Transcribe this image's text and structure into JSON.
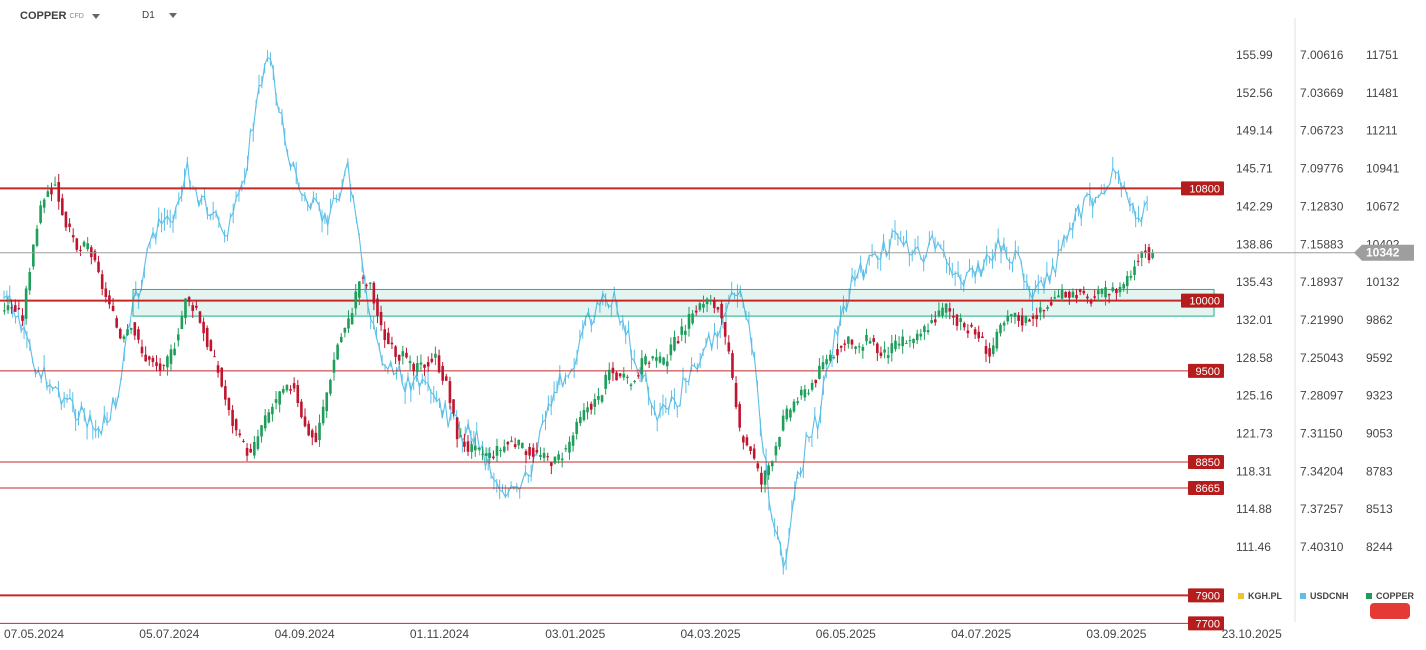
{
  "header": {
    "symbol": "COPPER",
    "symbol_sub": "CFD",
    "timeframe": "D1"
  },
  "legend": [
    {
      "name": "KGH.PL",
      "color": "#f1c232"
    },
    {
      "name": "USDCNH",
      "color": "#5bbfe8"
    },
    {
      "name": "COPPER",
      "color": "#1e9e5a"
    }
  ],
  "colors": {
    "up": "#1e9e5a",
    "down": "#c0152f",
    "usdcnh": "#5bbfe8",
    "level": "#c62828",
    "zone": "#1fae8a"
  },
  "chart_data": {
    "type": "line",
    "x_ticks": [
      "07.05.2024",
      "05.07.2024",
      "04.09.2024",
      "01.11.2024",
      "03.01.2025",
      "04.03.2025",
      "06.05.2025",
      "04.07.2025",
      "03.09.2025",
      "23.10.2025"
    ],
    "axes": {
      "kgh": [
        "155.99",
        "152.56",
        "149.14",
        "145.71",
        "142.29",
        "138.86",
        "135.43",
        "132.01",
        "128.58",
        "125.16",
        "121.73",
        "118.31",
        "114.88",
        "111.46"
      ],
      "usdcnh": [
        "7.00616",
        "7.03669",
        "7.06723",
        "7.09776",
        "7.12830",
        "7.15883",
        "7.18937",
        "7.21990",
        "7.25043",
        "7.28097",
        "7.31150",
        "7.34204",
        "7.37257",
        "7.40310"
      ],
      "copper": [
        "11751",
        "11481",
        "11211",
        "10941",
        "10672",
        "10402",
        "10132",
        "9862",
        "9592",
        "9323",
        "9053",
        "8783",
        "8513",
        "8244"
      ]
    },
    "copper_range": [
      8244,
      11751
    ],
    "current_price": "10342",
    "levels": [
      {
        "label": "10800",
        "value": 10800,
        "thick": true
      },
      {
        "label": "10000",
        "value": 10000,
        "thick": true
      },
      {
        "label": "9500",
        "value": 9500,
        "thick": false
      },
      {
        "label": "8850",
        "value": 8850,
        "thick": false
      },
      {
        "label": "8665",
        "value": 8665,
        "thick": false
      },
      {
        "label": "7900",
        "value": 7900,
        "thick": true
      },
      {
        "label": "7700",
        "value": 7700,
        "thick": false
      }
    ],
    "zone": {
      "from": 9890,
      "to": 10080
    },
    "series": [
      {
        "name": "COPPER",
        "values": [
          9960,
          9880,
          10420,
          10750,
          10820,
          10550,
          10350,
          10400,
          10180,
          9950,
          9750,
          9850,
          9620,
          9550,
          9500,
          9700,
          10000,
          9950,
          9700,
          9500,
          9200,
          9000,
          8900,
          9100,
          9250,
          9350,
          9400,
          9100,
          9000,
          9350,
          9700,
          9850,
          10150,
          10100,
          9800,
          9650,
          9600,
          9500,
          9550,
          9600,
          9400,
          9050,
          8950,
          8920,
          8900,
          8950,
          9000,
          8950,
          8920,
          8880,
          8860,
          8940,
          9100,
          9250,
          9300,
          9500,
          9450,
          9400,
          9550,
          9600,
          9550,
          9700,
          9820,
          9950,
          10000,
          9950,
          9600,
          9050,
          8950,
          8700,
          8900,
          9150,
          9280,
          9350,
          9450,
          9600,
          9650,
          9700,
          9650,
          9750,
          9600,
          9660,
          9720,
          9700,
          9800,
          9880,
          9960,
          9850,
          9800,
          9750,
          9620,
          9800,
          9900,
          9860,
          9900,
          9930,
          10020,
          10050,
          10060,
          10000,
          10040,
          10060,
          10100,
          10200,
          10380,
          10300
        ]
      },
      {
        "name": "USDCNH",
        "values": [
          7.202,
          7.215,
          7.24,
          7.26,
          7.27,
          7.28,
          7.29,
          7.3,
          7.31,
          7.3,
          7.28,
          7.22,
          7.19,
          7.15,
          7.14,
          7.13,
          7.1,
          7.12,
          7.13,
          7.15,
          7.14,
          7.1,
          7.05,
          7.0,
          7.05,
          7.09,
          7.12,
          7.13,
          7.14,
          7.12,
          7.1,
          7.16,
          7.22,
          7.25,
          7.26,
          7.27,
          7.27,
          7.28,
          7.29,
          7.3,
          7.31,
          7.31,
          7.33,
          7.35,
          7.36,
          7.36,
          7.34,
          7.3,
          7.28,
          7.26,
          7.25,
          7.22,
          7.21,
          7.2,
          7.22,
          7.25,
          7.27,
          7.3,
          7.29,
          7.28,
          7.26,
          7.25,
          7.23,
          7.21,
          7.2,
          7.22,
          7.3,
          7.38,
          7.42,
          7.36,
          7.32,
          7.3,
          7.25,
          7.22,
          7.19,
          7.18,
          7.17,
          7.16,
          7.15,
          7.16,
          7.17,
          7.16,
          7.17,
          7.18,
          7.19,
          7.18,
          7.17,
          7.16,
          7.17,
          7.18,
          7.2,
          7.19,
          7.17,
          7.15,
          7.13,
          7.12,
          7.11,
          7.1,
          7.12,
          7.14,
          7.13
        ]
      }
    ]
  }
}
